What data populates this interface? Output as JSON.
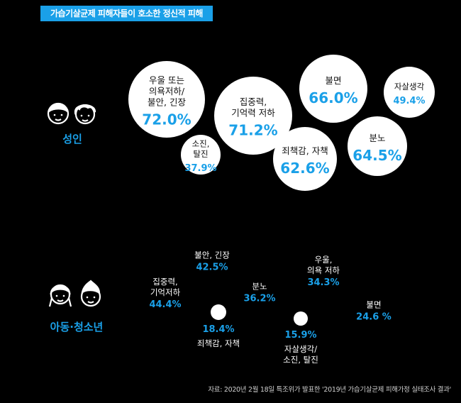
{
  "title": "가습기살균제 피해자들이 호소한 정신적 피해",
  "source": "자료: 2020년 2월 18일 특조위가 발표한 '2019년 가습기살균제 피해가정 실태조사 결과'",
  "colors": {
    "accent": "#1aa0e8",
    "background": "#000000",
    "bubble": "#ffffff"
  },
  "chart_data": {
    "type": "bubble",
    "groups": [
      {
        "name": "성인",
        "icon": "adult-faces-icon",
        "items": [
          {
            "label": [
              "우울 또는",
              "의욕저하/",
              "불안, 긴장"
            ],
            "value": 72.0,
            "display": "72.0%"
          },
          {
            "label": [
              "소진,",
              "탈진"
            ],
            "value": 37.9,
            "display": "37.9%"
          },
          {
            "label": [
              "집중력,",
              "기억력 저하"
            ],
            "value": 71.2,
            "display": "71.2%"
          },
          {
            "label": [
              "죄책감, 자책"
            ],
            "value": 62.6,
            "display": "62.6%"
          },
          {
            "label": [
              "불면"
            ],
            "value": 66.0,
            "display": "66.0%"
          },
          {
            "label": [
              "분노"
            ],
            "value": 64.5,
            "display": "64.5%"
          },
          {
            "label": [
              "자살생각"
            ],
            "value": 49.4,
            "display": "49.4%"
          }
        ]
      },
      {
        "name": "아동·청소년",
        "icon": "child-faces-icon",
        "items": [
          {
            "label": [
              "집중력,",
              "기억저하"
            ],
            "value": 44.4,
            "display": "44.4%"
          },
          {
            "label": [
              "불안, 긴장"
            ],
            "value": 42.5,
            "display": "42.5%"
          },
          {
            "label": [
              "죄책감, 자책"
            ],
            "value": 18.4,
            "display": "18.4%"
          },
          {
            "label": [
              "분노"
            ],
            "value": 36.2,
            "display": "36.2%"
          },
          {
            "label": [
              "자살생각/",
              "소진, 탈진"
            ],
            "value": 15.9,
            "display": "15.9%"
          },
          {
            "label": [
              "우울,",
              "의욕 저하"
            ],
            "value": 34.3,
            "display": "34.3%"
          },
          {
            "label": [
              "불면"
            ],
            "value": 24.6,
            "display": "24.6 %"
          }
        ]
      }
    ]
  }
}
